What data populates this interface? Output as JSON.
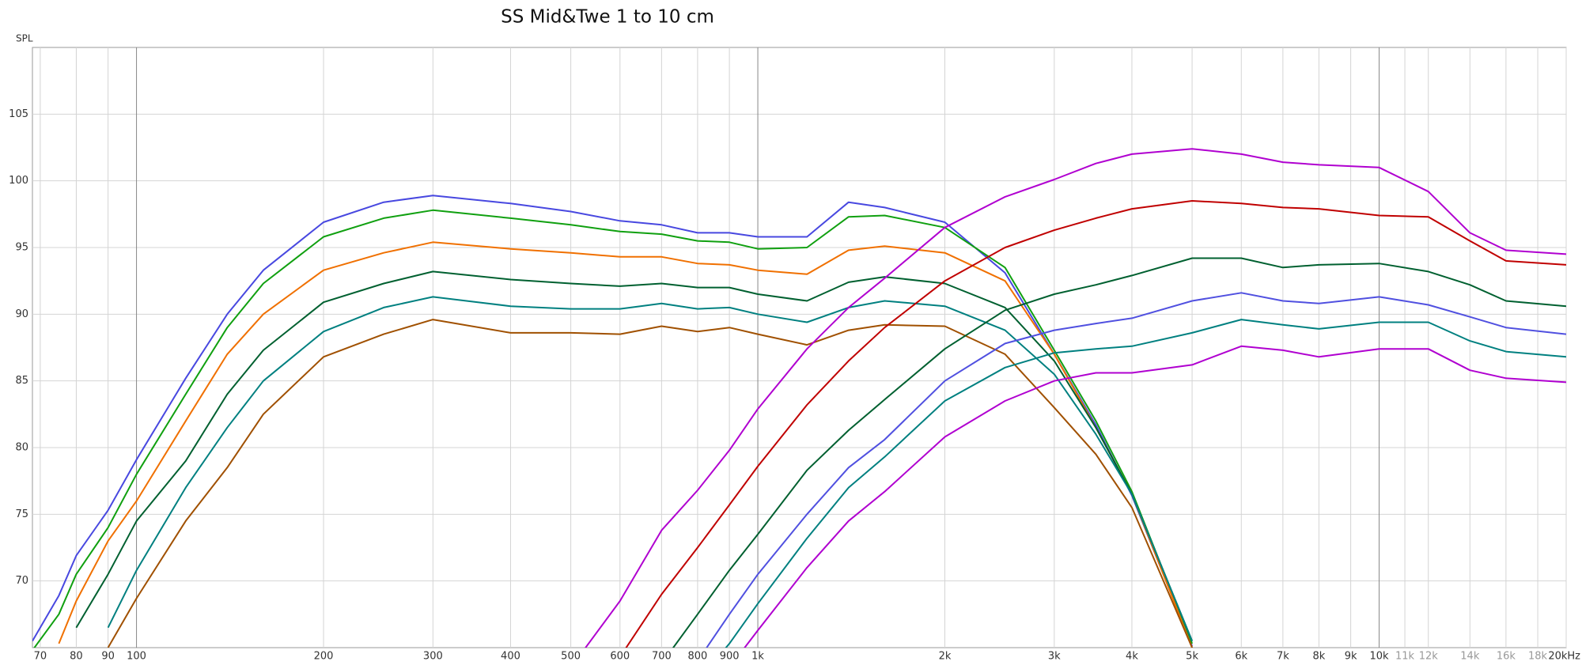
{
  "chart_data": {
    "type": "line",
    "title": "SS Mid&Twe 1 to 10 cm",
    "y_label": "SPL",
    "log_x": true,
    "grid": true,
    "xlim": [
      68,
      20000
    ],
    "ylim": [
      65,
      110
    ],
    "yticks": [
      70,
      75,
      80,
      85,
      90,
      95,
      100,
      105
    ],
    "xticks": [
      70,
      80,
      90,
      100,
      200,
      300,
      400,
      500,
      600,
      700,
      800,
      900,
      {
        "value": 1000,
        "label": "1k"
      },
      {
        "value": 2000,
        "label": "2k"
      },
      {
        "value": 3000,
        "label": "3k"
      },
      {
        "value": 4000,
        "label": "4k"
      },
      {
        "value": 5000,
        "label": "5k"
      },
      {
        "value": 6000,
        "label": "6k"
      },
      {
        "value": 7000,
        "label": "7k"
      },
      {
        "value": 8000,
        "label": "8k"
      },
      {
        "value": 9000,
        "label": "9k"
      },
      {
        "value": 10000,
        "label": "10k"
      },
      {
        "value": 11000,
        "label": "11k"
      },
      {
        "value": 12000,
        "label": "12k"
      },
      {
        "value": 14000,
        "label": "14k"
      },
      {
        "value": 16000,
        "label": "16k"
      },
      {
        "value": 18000,
        "label": "18k"
      },
      {
        "value": 20000,
        "label": "20kHz"
      }
    ],
    "x": [
      68,
      75,
      80,
      90,
      100,
      120,
      140,
      160,
      200,
      250,
      300,
      400,
      500,
      600,
      700,
      800,
      900,
      1000,
      1200,
      1400,
      1600,
      2000,
      2500,
      3000,
      3500,
      4000,
      5000,
      6000,
      7000,
      8000,
      10000,
      12000,
      14000,
      16000,
      20000
    ],
    "series": [
      {
        "color": "#4848e0",
        "values": [
          65.5,
          68.9,
          71.9,
          75.3,
          79.1,
          85.2,
          90,
          93.3,
          96.9,
          98.4,
          98.9,
          98.3,
          97.7,
          97.0,
          96.7,
          96.1,
          96.1,
          95.8,
          95.8,
          98.4,
          98.0,
          96.9,
          93.1,
          87.0,
          81.7,
          76.4,
          65.1,
          null,
          null,
          null,
          null,
          null,
          null,
          null,
          null
        ]
      },
      {
        "color": "#10a010",
        "values": [
          64.8,
          67.5,
          70.5,
          74,
          78,
          84,
          89,
          92.3,
          95.8,
          97.2,
          97.8,
          97.2,
          96.7,
          96.2,
          96.0,
          95.5,
          95.4,
          94.9,
          95.0,
          97.3,
          97.4,
          96.5,
          93.5,
          87.3,
          82,
          76.7,
          65.3,
          null,
          null,
          null,
          null,
          null,
          null,
          null,
          null
        ]
      },
      {
        "color": "#f07000",
        "values": [
          null,
          65.3,
          68.5,
          73,
          76,
          82,
          87,
          90,
          93.3,
          94.6,
          95.4,
          94.9,
          94.6,
          94.3,
          94.3,
          93.8,
          93.7,
          93.3,
          93.0,
          94.8,
          95.1,
          94.6,
          92.5,
          87,
          81.5,
          76.5,
          65,
          null,
          null,
          null,
          null,
          null,
          null,
          null,
          null
        ]
      },
      {
        "color": "#006030",
        "values": [
          null,
          null,
          66.5,
          70.5,
          74.5,
          79,
          84,
          87.3,
          90.9,
          92.3,
          93.2,
          92.6,
          92.3,
          92.1,
          92.3,
          92.0,
          92.0,
          91.5,
          91.0,
          92.4,
          92.8,
          92.3,
          90.5,
          86.5,
          81.5,
          76.5,
          65.5,
          null,
          null,
          null,
          null,
          null,
          null,
          null,
          null
        ]
      },
      {
        "color": "#008080",
        "values": [
          null,
          null,
          null,
          66.5,
          70.8,
          77,
          81.5,
          85,
          88.7,
          90.5,
          91.3,
          90.6,
          90.4,
          90.4,
          90.8,
          90.4,
          90.5,
          90.0,
          89.4,
          90.5,
          91.0,
          90.6,
          88.8,
          85.5,
          81,
          76.5,
          65.5,
          null,
          null,
          null,
          null,
          null,
          null,
          null,
          null
        ]
      },
      {
        "color": "#a05000",
        "values": [
          null,
          null,
          null,
          65,
          68.7,
          74.5,
          78.5,
          82.5,
          86.8,
          88.5,
          89.6,
          88.6,
          88.6,
          88.5,
          89.1,
          88.7,
          89.0,
          88.5,
          87.7,
          88.8,
          89.2,
          89.1,
          87.0,
          83.0,
          79.5,
          75.5,
          65,
          null,
          null,
          null,
          null,
          null,
          null,
          null,
          null
        ]
      },
      {
        "color": "#b000d0",
        "values": [
          null,
          null,
          null,
          null,
          null,
          null,
          null,
          null,
          null,
          null,
          null,
          null,
          63.5,
          68.5,
          73.8,
          76.8,
          79.8,
          82.9,
          87.4,
          90.5,
          92.7,
          96.5,
          98.8,
          100.1,
          101.3,
          102,
          102.4,
          102,
          101.4,
          101.2,
          101,
          99.2,
          96.1,
          94.8,
          94.5
        ]
      },
      {
        "color": "#c00000",
        "values": [
          null,
          null,
          null,
          null,
          null,
          null,
          null,
          null,
          null,
          null,
          null,
          null,
          null,
          64.3,
          69,
          72.5,
          75.7,
          78.6,
          83.2,
          86.5,
          89,
          92.5,
          95.0,
          96.3,
          97.2,
          97.9,
          98.5,
          98.3,
          98.0,
          97.9,
          97.4,
          97.3,
          95.5,
          94.0,
          93.7
        ]
      },
      {
        "color": "#006030",
        "values": [
          null,
          null,
          null,
          null,
          null,
          null,
          null,
          null,
          null,
          null,
          null,
          null,
          null,
          null,
          63.8,
          67.5,
          70.8,
          73.5,
          78.3,
          81.3,
          83.6,
          87.4,
          90.3,
          91.5,
          92.2,
          92.9,
          94.2,
          94.2,
          93.5,
          93.7,
          93.8,
          93.2,
          92.2,
          91.0,
          90.6
        ]
      },
      {
        "color": "#5050e0",
        "values": [
          null,
          null,
          null,
          null,
          null,
          null,
          null,
          null,
          null,
          null,
          null,
          null,
          null,
          null,
          null,
          64,
          67.5,
          70.5,
          75,
          78.5,
          80.6,
          85.0,
          87.8,
          88.8,
          89.3,
          89.7,
          91.0,
          91.6,
          91.0,
          90.8,
          91.3,
          90.7,
          89.8,
          89.0,
          88.5
        ]
      },
      {
        "color": "#008080",
        "values": [
          null,
          null,
          null,
          null,
          null,
          null,
          null,
          null,
          null,
          null,
          null,
          null,
          null,
          null,
          null,
          62.5,
          65.3,
          68.3,
          73.2,
          77,
          79.3,
          83.5,
          86.0,
          87.1,
          87.4,
          87.6,
          88.6,
          89.6,
          89.2,
          88.9,
          89.4,
          89.4,
          88.0,
          87.2,
          86.8
        ]
      },
      {
        "color": "#b000d0",
        "values": [
          null,
          null,
          null,
          null,
          null,
          null,
          null,
          null,
          null,
          null,
          null,
          null,
          null,
          null,
          null,
          null,
          63.5,
          66.3,
          71,
          74.5,
          76.7,
          80.8,
          83.5,
          85.0,
          85.6,
          85.6,
          86.2,
          87.6,
          87.3,
          86.8,
          87.4,
          87.4,
          85.8,
          85.2,
          84.9
        ]
      }
    ]
  }
}
